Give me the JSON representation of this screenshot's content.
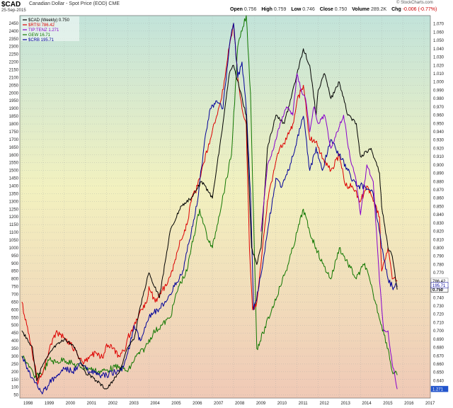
{
  "header": {
    "symbol": "$CAD",
    "description": "Canadian Dollar - Spot Price (EOD) CME",
    "date": "25-Sep-2015",
    "open_label": "Open",
    "open": "0.756",
    "high_label": "High",
    "high": "0.759",
    "low_label": "Low",
    "low": "0.746",
    "close_label": "Close",
    "close": "0.750",
    "volume_label": "Volume",
    "volume": "289.2K",
    "chg_label": "Chg",
    "chg": "-0.006 (-0.77%)",
    "brand": "© StockCharts.com"
  },
  "chart_data": {
    "type": "line",
    "title": "$CAD Canadian Dollar - Spot Price (EOD) CME",
    "x_ticks": [
      "1998",
      "1999",
      "2000",
      "2001",
      "2002",
      "2003",
      "2004",
      "2005",
      "2006",
      "2007",
      "2008",
      "2009",
      "2010",
      "2011",
      "2012",
      "2013",
      "2014",
      "2015",
      "2016",
      "2017"
    ],
    "x_range": [
      1997.9,
      2017.3
    ],
    "left_axis": {
      "ylim": [
        30,
        2500
      ],
      "ticks": [
        50,
        100,
        150,
        200,
        250,
        300,
        350,
        400,
        450,
        500,
        550,
        600,
        650,
        700,
        750,
        800,
        850,
        900,
        950,
        1000,
        1050,
        1100,
        1150,
        1200,
        1250,
        1300,
        1350,
        1400,
        1450,
        1500,
        1550,
        1600,
        1650,
        1700,
        1750,
        1800,
        1850,
        1900,
        1950,
        2000,
        2050,
        2100,
        2150,
        2200,
        2250,
        2300,
        2350,
        2400,
        2450
      ]
    },
    "right_axis": {
      "ylim": [
        0.619,
        1.08
      ],
      "ticks": [
        "0.630",
        "0.640",
        "0.650",
        "0.660",
        "0.670",
        "0.680",
        "0.690",
        "0.700",
        "0.710",
        "0.720",
        "0.730",
        "0.740",
        "0.750",
        "0.760",
        "0.770",
        "0.780",
        "0.790",
        "0.800",
        "0.810",
        "0.820",
        "0.830",
        "0.840",
        "0.850",
        "0.860",
        "0.870",
        "0.880",
        "0.890",
        "0.900",
        "0.910",
        "0.920",
        "0.930",
        "0.940",
        "0.950",
        "0.960",
        "0.970",
        "0.980",
        "0.990",
        "1.000",
        "1.010",
        "1.020",
        "1.030",
        "1.040",
        "1.050",
        "1.060",
        "1.070"
      ]
    },
    "legend": {
      "position": "top-left",
      "items": [
        "$CAD (Weekly) 0.750",
        "$RTSI 786.42",
        "TIP:TENZ 1.271",
        "GEW 16.71",
        "$CRB 195.71"
      ]
    },
    "last_value_labels": [
      "786.42",
      "0.750",
      "195.71",
      "1.271"
    ],
    "series": [
      {
        "name": "$CAD (Weekly)",
        "axis": "right",
        "color": "#000000",
        "x": [
          1998.0,
          1998.5,
          1998.7,
          1999.0,
          1999.5,
          2000.0,
          2000.5,
          2001.0,
          2001.5,
          2002.0,
          2002.3,
          2002.6,
          2003.0,
          2003.3,
          2003.6,
          2004.0,
          2004.5,
          2005.0,
          2005.5,
          2006.0,
          2006.5,
          2007.0,
          2007.5,
          2007.8,
          2008.0,
          2008.3,
          2008.6,
          2008.85,
          2009.1,
          2009.3,
          2009.6,
          2010.0,
          2010.4,
          2010.6,
          2011.0,
          2011.3,
          2011.6,
          2011.9,
          2012.0,
          2012.3,
          2012.6,
          2013.0,
          2013.4,
          2013.8,
          2014.0,
          2014.5,
          2014.9,
          2015.0,
          2015.3,
          2015.5,
          2015.73
        ],
        "y": [
          0.7,
          0.68,
          0.64,
          0.66,
          0.68,
          0.69,
          0.68,
          0.65,
          0.64,
          0.63,
          0.64,
          0.65,
          0.68,
          0.69,
          0.73,
          0.77,
          0.74,
          0.82,
          0.85,
          0.86,
          0.88,
          0.86,
          0.95,
          1.01,
          1.02,
          0.99,
          0.96,
          0.8,
          0.78,
          0.8,
          0.92,
          0.96,
          0.95,
          0.97,
          1.01,
          1.04,
          1.02,
          0.96,
          0.99,
          1.01,
          0.98,
          1.0,
          0.96,
          0.95,
          0.91,
          0.92,
          0.89,
          0.85,
          0.8,
          0.79,
          0.75
        ]
      },
      {
        "name": "$RTSI",
        "axis": "left",
        "color": "#dd0000",
        "x": [
          1998.0,
          1998.3,
          1998.6,
          1998.75,
          1999.0,
          1999.3,
          1999.6,
          2000.0,
          2000.3,
          2000.6,
          2000.9,
          2001.2,
          2001.5,
          2001.8,
          2002.0,
          2002.3,
          2002.6,
          2002.9,
          2003.0,
          2003.3,
          2003.6,
          2003.9,
          2004.0,
          2004.3,
          2004.6,
          2004.9,
          2005.2,
          2005.5,
          2005.8,
          2006.0,
          2006.3,
          2006.6,
          2006.9,
          2007.2,
          2007.4,
          2007.6,
          2007.8,
          2008.0,
          2008.2,
          2008.4,
          2008.6,
          2008.75,
          2008.9,
          2009.1,
          2009.3,
          2009.6,
          2009.9,
          2010.2,
          2010.5,
          2010.8,
          2011.0,
          2011.3,
          2011.6,
          2011.8,
          2012.0,
          2012.3,
          2012.6,
          2013.0,
          2013.3,
          2013.6,
          2014.0,
          2014.3,
          2014.6,
          2014.9,
          2015.0,
          2015.3,
          2015.5,
          2015.73
        ],
        "y": [
          650,
          450,
          250,
          120,
          200,
          350,
          450,
          420,
          380,
          320,
          250,
          300,
          320,
          290,
          380,
          350,
          300,
          350,
          420,
          500,
          600,
          650,
          750,
          650,
          720,
          780,
          900,
          1050,
          1150,
          1300,
          1400,
          1550,
          1700,
          1850,
          1950,
          2100,
          2300,
          2450,
          2100,
          1900,
          1800,
          1000,
          600,
          650,
          900,
          1300,
          1500,
          1650,
          1700,
          1800,
          1950,
          2050,
          1700,
          1700,
          1650,
          1550,
          1500,
          1600,
          1400,
          1400,
          1300,
          1400,
          1300,
          1200,
          850,
          1000,
          800,
          786
        ]
      },
      {
        "name": "TIP:TENZ",
        "axis": "right",
        "color": "#8800cc",
        "x": [
          2009.3,
          2009.6,
          2009.9,
          2010.2,
          2010.5,
          2010.8,
          2011.0,
          2011.2,
          2011.4,
          2011.6,
          2011.8,
          2012.0,
          2012.3,
          2012.6,
          2012.9,
          2013.2,
          2013.5,
          2013.8,
          2014.0,
          2014.3,
          2014.6,
          2014.9,
          2015.1,
          2015.3,
          2015.5,
          2015.6,
          2015.73
        ],
        "y": [
          0.82,
          0.9,
          0.92,
          0.95,
          0.97,
          0.96,
          1.01,
          0.99,
          0.98,
          0.94,
          0.97,
          0.95,
          0.96,
          0.92,
          0.94,
          0.96,
          0.91,
          0.88,
          0.84,
          0.9,
          0.88,
          0.76,
          0.7,
          0.7,
          0.66,
          0.65,
          0.63
        ]
      },
      {
        "name": "GEW",
        "axis": "left",
        "color": "#117700",
        "x": [
          1998.0,
          1998.3,
          1998.6,
          1999.0,
          1999.3,
          1999.6,
          2000.0,
          2000.4,
          2000.8,
          2001.2,
          2001.6,
          2002.0,
          2002.4,
          2002.8,
          2003.0,
          2003.4,
          2003.8,
          2004.2,
          2004.6,
          2005.0,
          2005.4,
          2005.8,
          2006.0,
          2006.4,
          2006.8,
          2007.0,
          2007.3,
          2007.6,
          2007.9,
          2008.2,
          2008.4,
          2008.6,
          2008.8,
          2009.1,
          2009.4,
          2009.8,
          2010.2,
          2010.6,
          2011.0,
          2011.3,
          2011.6,
          2011.9,
          2012.2,
          2012.6,
          2013.0,
          2013.4,
          2013.8,
          2014.2,
          2014.6,
          2015.0,
          2015.3,
          2015.5,
          2015.73
        ],
        "y": [
          300,
          250,
          160,
          200,
          280,
          260,
          280,
          250,
          230,
          220,
          200,
          210,
          230,
          220,
          200,
          300,
          350,
          450,
          500,
          550,
          750,
          850,
          1000,
          1250,
          1050,
          1000,
          1200,
          1400,
          1600,
          2300,
          2400,
          2500,
          2000,
          350,
          450,
          600,
          750,
          900,
          1100,
          1250,
          1100,
          1000,
          900,
          800,
          1000,
          900,
          800,
          900,
          700,
          500,
          350,
          200,
          180
        ]
      },
      {
        "name": "$CRB",
        "axis": "left",
        "color": "#000099",
        "x": [
          1998.0,
          1998.3,
          1998.6,
          1999.0,
          1999.3,
          1999.6,
          2000.0,
          2000.4,
          2000.8,
          2001.2,
          2001.6,
          2002.0,
          2002.4,
          2002.8,
          2003.0,
          2003.3,
          2003.6,
          2004.0,
          2004.4,
          2004.8,
          2005.2,
          2005.6,
          2006.0,
          2006.3,
          2006.6,
          2006.9,
          2007.2,
          2007.5,
          2007.8,
          2008.0,
          2008.2,
          2008.4,
          2008.6,
          2008.8,
          2008.95,
          2009.2,
          2009.6,
          2010.0,
          2010.3,
          2010.6,
          2011.0,
          2011.3,
          2011.6,
          2011.9,
          2012.2,
          2012.6,
          2013.0,
          2013.4,
          2013.8,
          2014.2,
          2014.6,
          2015.0,
          2015.3,
          2015.5,
          2015.73
        ],
        "y": [
          300,
          200,
          130,
          70,
          130,
          160,
          220,
          200,
          250,
          200,
          180,
          180,
          200,
          230,
          320,
          500,
          400,
          550,
          600,
          650,
          750,
          850,
          1100,
          1300,
          1650,
          1900,
          1950,
          1900,
          2300,
          2450,
          2100,
          2200,
          1900,
          1350,
          600,
          750,
          1100,
          1450,
          1400,
          1500,
          1700,
          1850,
          1500,
          1650,
          1500,
          1700,
          1600,
          1500,
          1400,
          1400,
          1350,
          1000,
          800,
          750,
          750
        ]
      }
    ]
  }
}
